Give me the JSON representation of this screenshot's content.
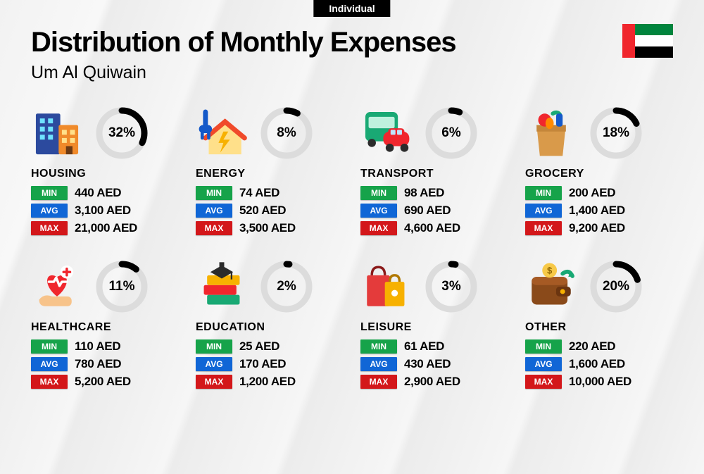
{
  "header": {
    "tag": "Individual",
    "title": "Distribution of Monthly Expenses",
    "subtitle": "Um Al Quiwain"
  },
  "labels": {
    "min": "MIN",
    "avg": "AVG",
    "max": "MAX"
  },
  "colors": {
    "min_badge": "#16a34a",
    "avg_badge": "#1066d6",
    "max_badge": "#d3171a",
    "donut_track": "#dcdcdc",
    "donut_fill": "#000000",
    "flag": {
      "red": "#f0262d",
      "green": "#00843d",
      "white": "#ffffff",
      "black": "#000000"
    }
  },
  "donut": {
    "radius": 32,
    "stroke_width": 9,
    "circumference": 201.06
  },
  "categories": [
    {
      "key": "housing",
      "name": "HOUSING",
      "pct": 32,
      "min": "440 AED",
      "avg": "3,100 AED",
      "max": "21,000 AED",
      "icon": "buildings"
    },
    {
      "key": "energy",
      "name": "ENERGY",
      "pct": 8,
      "min": "74 AED",
      "avg": "520 AED",
      "max": "3,500 AED",
      "icon": "energy-house"
    },
    {
      "key": "transport",
      "name": "TRANSPORT",
      "pct": 6,
      "min": "98 AED",
      "avg": "690 AED",
      "max": "4,600 AED",
      "icon": "bus-car"
    },
    {
      "key": "grocery",
      "name": "GROCERY",
      "pct": 18,
      "min": "200 AED",
      "avg": "1,400 AED",
      "max": "9,200 AED",
      "icon": "grocery-bag"
    },
    {
      "key": "healthcare",
      "name": "HEALTHCARE",
      "pct": 11,
      "min": "110 AED",
      "avg": "780 AED",
      "max": "5,200 AED",
      "icon": "heart-hand"
    },
    {
      "key": "education",
      "name": "EDUCATION",
      "pct": 2,
      "min": "25 AED",
      "avg": "170 AED",
      "max": "1,200 AED",
      "icon": "grad-books"
    },
    {
      "key": "leisure",
      "name": "LEISURE",
      "pct": 3,
      "min": "61 AED",
      "avg": "430 AED",
      "max": "2,900 AED",
      "icon": "shopping-bags"
    },
    {
      "key": "other",
      "name": "OTHER",
      "pct": 20,
      "min": "220 AED",
      "avg": "1,600 AED",
      "max": "10,000 AED",
      "icon": "wallet"
    }
  ]
}
